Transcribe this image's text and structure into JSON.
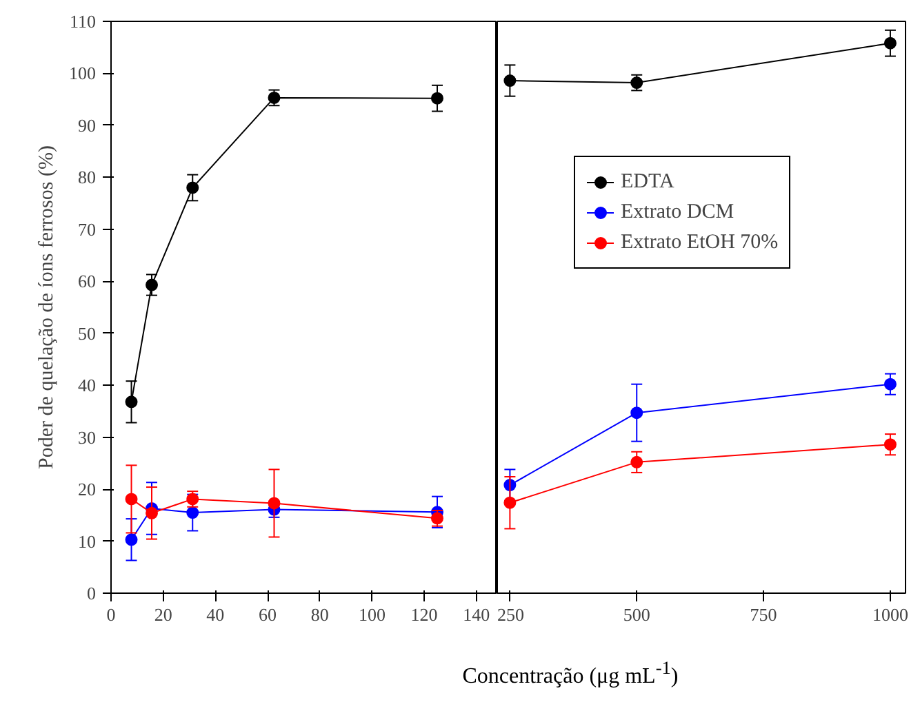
{
  "chart_data": [
    {
      "type": "line",
      "ylabel": "Poder de quelação de íons ferrosos (%)",
      "xlabel": "Concentração (μg mL$^{-1}$)",
      "xlim": [
        0,
        148
      ],
      "xticks": [
        0,
        20,
        40,
        60,
        80,
        100,
        120,
        140
      ],
      "ylim": [
        0,
        110
      ],
      "yticks": [
        0,
        10,
        20,
        30,
        40,
        50,
        60,
        70,
        80,
        90,
        100,
        110
      ],
      "marker": "circle",
      "legend": false,
      "grid": false,
      "series": [
        {
          "color": "#000000",
          "x": [
            7.8,
            15.6,
            31.25,
            62.5,
            125
          ],
          "values": [
            36.8,
            59.3,
            78,
            95.3,
            95.2
          ],
          "errors": [
            4,
            2,
            2.5,
            1.5,
            2.5
          ]
        },
        {
          "color": "#0000ff",
          "x": [
            7.8,
            15.6,
            31.25,
            62.5,
            125
          ],
          "values": [
            10.3,
            16.3,
            15.5,
            16.1,
            15.6
          ],
          "errors": [
            4,
            5,
            3.5,
            1.5,
            3
          ]
        },
        {
          "color": "#ff0000",
          "x": [
            7.8,
            15.6,
            31.25,
            62.5,
            125
          ],
          "values": [
            18.1,
            15.4,
            18.1,
            17.3,
            14.4
          ],
          "errors": [
            6.5,
            5,
            1.5,
            6.5,
            1.5
          ]
        }
      ]
    },
    {
      "type": "line",
      "xlim": [
        225,
        1030
      ],
      "xticks": [
        250,
        500,
        750,
        1000
      ],
      "ylim": [
        0,
        110
      ],
      "tick_labels": "x",
      "marker": "circle",
      "legend": "top right",
      "grid": false,
      "series": [
        {
          "name": "EDTA",
          "color": "#000000",
          "x": [
            250,
            500,
            1000
          ],
          "values": [
            98.6,
            98.2,
            105.8
          ],
          "errors": [
            3,
            1.5,
            2.5
          ]
        },
        {
          "name": "Extrato DCM",
          "color": "#0000ff",
          "x": [
            250,
            500,
            1000
          ],
          "values": [
            20.8,
            34.7,
            40.2
          ],
          "errors": [
            3,
            5.5,
            2
          ]
        },
        {
          "name": "Extrato EtOH 70%",
          "color": "#ff0000",
          "x": [
            250,
            500,
            1000
          ],
          "values": [
            17.4,
            25.2,
            28.6
          ],
          "errors": [
            5,
            2,
            2
          ]
        }
      ]
    }
  ]
}
